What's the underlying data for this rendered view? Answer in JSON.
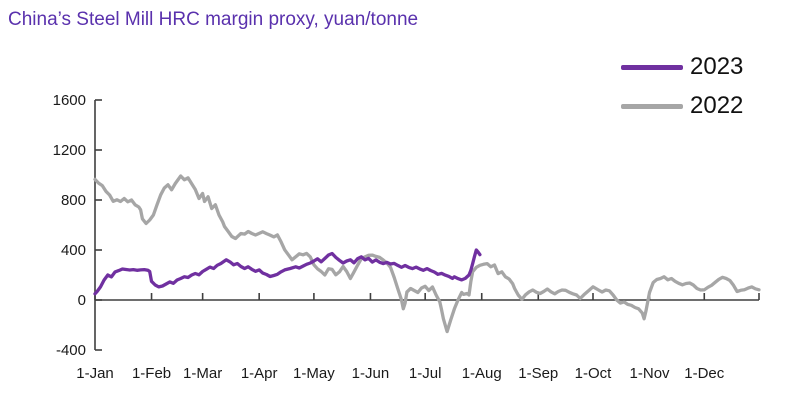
{
  "title": {
    "text": "China’s Steel Mill HRC margin proxy, yuan/tonne",
    "color": "#5a31ad"
  },
  "legend": {
    "items": [
      {
        "label": "2023",
        "color": "#7030A0"
      },
      {
        "label": "2022",
        "color": "#A6A6A6"
      }
    ]
  },
  "axis_style": {
    "line_color": "#3f3f3f",
    "tick_label_color": "#1a1a1a"
  },
  "chart_data": {
    "type": "line",
    "title": "China’s Steel Mill HRC margin proxy, yuan/tonne",
    "ylabel": "yuan/tonne",
    "ylim": [
      -400,
      1600
    ],
    "yticks": [
      1600,
      1200,
      800,
      400,
      0,
      -400
    ],
    "x_unit": "day-of-year",
    "xtick_labels": [
      "1-Jan",
      "1-Feb",
      "1-Mar",
      "1-Apr",
      "1-May",
      "1-Jun",
      "1-Jul",
      "1-Aug",
      "1-Sep",
      "1-Oct",
      "1-Nov",
      "1-Dec"
    ],
    "xtick_days": [
      1,
      32,
      60,
      91,
      121,
      152,
      182,
      213,
      244,
      274,
      305,
      335
    ],
    "x_axis_end_day": 365,
    "grid": false,
    "legend_position": "top-right",
    "series": [
      {
        "name": "2022",
        "color": "#A6A6A6",
        "points": [
          [
            1,
            965
          ],
          [
            3,
            935
          ],
          [
            5,
            915
          ],
          [
            7,
            870
          ],
          [
            9,
            840
          ],
          [
            11,
            790
          ],
          [
            13,
            802
          ],
          [
            15,
            788
          ],
          [
            17,
            812
          ],
          [
            19,
            786
          ],
          [
            21,
            800
          ],
          [
            23,
            762
          ],
          [
            25,
            744
          ],
          [
            26,
            722
          ],
          [
            27,
            650
          ],
          [
            29,
            612
          ],
          [
            31,
            640
          ],
          [
            33,
            680
          ],
          [
            35,
            762
          ],
          [
            37,
            842
          ],
          [
            39,
            896
          ],
          [
            41,
            922
          ],
          [
            43,
            882
          ],
          [
            45,
            932
          ],
          [
            47,
            972
          ],
          [
            48,
            992
          ],
          [
            50,
            962
          ],
          [
            52,
            978
          ],
          [
            54,
            930
          ],
          [
            56,
            884
          ],
          [
            58,
            812
          ],
          [
            60,
            852
          ],
          [
            61,
            788
          ],
          [
            63,
            826
          ],
          [
            65,
            732
          ],
          [
            67,
            762
          ],
          [
            69,
            680
          ],
          [
            71,
            625
          ],
          [
            72,
            588
          ],
          [
            74,
            548
          ],
          [
            76,
            508
          ],
          [
            78,
            492
          ],
          [
            79,
            506
          ],
          [
            81,
            532
          ],
          [
            83,
            527
          ],
          [
            85,
            548
          ],
          [
            87,
            532
          ],
          [
            89,
            520
          ],
          [
            91,
            533
          ],
          [
            93,
            546
          ],
          [
            95,
            531
          ],
          [
            97,
            519
          ],
          [
            99,
            505
          ],
          [
            101,
            521
          ],
          [
            103,
            465
          ],
          [
            105,
            402
          ],
          [
            107,
            362
          ],
          [
            109,
            322
          ],
          [
            111,
            346
          ],
          [
            113,
            370
          ],
          [
            115,
            362
          ],
          [
            117,
            373
          ],
          [
            119,
            345
          ],
          [
            121,
            282
          ],
          [
            123,
            250
          ],
          [
            125,
            228
          ],
          [
            127,
            200
          ],
          [
            129,
            250
          ],
          [
            131,
            245
          ],
          [
            133,
            202
          ],
          [
            135,
            225
          ],
          [
            137,
            268
          ],
          [
            139,
            228
          ],
          [
            141,
            172
          ],
          [
            143,
            225
          ],
          [
            145,
            280
          ],
          [
            147,
            330
          ],
          [
            149,
            345
          ],
          [
            151,
            358
          ],
          [
            153,
            359
          ],
          [
            155,
            349
          ],
          [
            157,
            341
          ],
          [
            159,
            320
          ],
          [
            161,
            296
          ],
          [
            163,
            262
          ],
          [
            165,
            180
          ],
          [
            167,
            90
          ],
          [
            169,
            0
          ],
          [
            170,
            -70
          ],
          [
            171,
            -25
          ],
          [
            172,
            64
          ],
          [
            174,
            92
          ],
          [
            176,
            76
          ],
          [
            178,
            60
          ],
          [
            180,
            96
          ],
          [
            182,
            110
          ],
          [
            184,
            76
          ],
          [
            186,
            104
          ],
          [
            188,
            40
          ],
          [
            190,
            -15
          ],
          [
            191,
            -80
          ],
          [
            192,
            -150
          ],
          [
            194,
            -253
          ],
          [
            196,
            -160
          ],
          [
            198,
            -70
          ],
          [
            200,
            0
          ],
          [
            202,
            60
          ],
          [
            203,
            45
          ],
          [
            205,
            52
          ],
          [
            206,
            40
          ],
          [
            207,
            146
          ],
          [
            208,
            225
          ],
          [
            210,
            262
          ],
          [
            212,
            278
          ],
          [
            214,
            286
          ],
          [
            216,
            291
          ],
          [
            218,
            266
          ],
          [
            220,
            280
          ],
          [
            222,
            211
          ],
          [
            224,
            226
          ],
          [
            226,
            186
          ],
          [
            228,
            168
          ],
          [
            230,
            130
          ],
          [
            231,
            92
          ],
          [
            233,
            40
          ],
          [
            235,
            6
          ],
          [
            237,
            42
          ],
          [
            239,
            66
          ],
          [
            241,
            80
          ],
          [
            243,
            62
          ],
          [
            245,
            52
          ],
          [
            247,
            68
          ],
          [
            249,
            88
          ],
          [
            251,
            66
          ],
          [
            253,
            50
          ],
          [
            255,
            68
          ],
          [
            257,
            80
          ],
          [
            259,
            78
          ],
          [
            261,
            62
          ],
          [
            263,
            50
          ],
          [
            265,
            40
          ],
          [
            267,
            12
          ],
          [
            269,
            42
          ],
          [
            272,
            80
          ],
          [
            274,
            106
          ],
          [
            277,
            80
          ],
          [
            279,
            64
          ],
          [
            281,
            80
          ],
          [
            283,
            74
          ],
          [
            285,
            40
          ],
          [
            287,
            0
          ],
          [
            289,
            -25
          ],
          [
            291,
            -15
          ],
          [
            293,
            -35
          ],
          [
            295,
            -42
          ],
          [
            297,
            -60
          ],
          [
            299,
            -70
          ],
          [
            301,
            -105
          ],
          [
            302,
            -150
          ],
          [
            303,
            -90
          ],
          [
            305,
            60
          ],
          [
            307,
            140
          ],
          [
            309,
            164
          ],
          [
            311,
            172
          ],
          [
            313,
            186
          ],
          [
            315,
            162
          ],
          [
            317,
            172
          ],
          [
            319,
            150
          ],
          [
            321,
            134
          ],
          [
            323,
            122
          ],
          [
            325,
            132
          ],
          [
            327,
            136
          ],
          [
            329,
            120
          ],
          [
            331,
            92
          ],
          [
            333,
            80
          ],
          [
            335,
            82
          ],
          [
            337,
            102
          ],
          [
            339,
            118
          ],
          [
            341,
            142
          ],
          [
            343,
            166
          ],
          [
            345,
            182
          ],
          [
            347,
            172
          ],
          [
            349,
            157
          ],
          [
            351,
            118
          ],
          [
            353,
            68
          ],
          [
            355,
            78
          ],
          [
            357,
            82
          ],
          [
            359,
            95
          ],
          [
            361,
            105
          ],
          [
            363,
            90
          ],
          [
            365,
            82
          ]
        ]
      },
      {
        "name": "2023",
        "color": "#7030A0",
        "points": [
          [
            1,
            50
          ],
          [
            2,
            65
          ],
          [
            4,
            105
          ],
          [
            6,
            160
          ],
          [
            8,
            200
          ],
          [
            10,
            185
          ],
          [
            12,
            225
          ],
          [
            14,
            235
          ],
          [
            16,
            248
          ],
          [
            18,
            244
          ],
          [
            20,
            240
          ],
          [
            22,
            243
          ],
          [
            24,
            238
          ],
          [
            26,
            241
          ],
          [
            28,
            243
          ],
          [
            30,
            238
          ],
          [
            31,
            228
          ],
          [
            32,
            150
          ],
          [
            34,
            120
          ],
          [
            36,
            105
          ],
          [
            38,
            112
          ],
          [
            40,
            128
          ],
          [
            42,
            145
          ],
          [
            44,
            134
          ],
          [
            46,
            160
          ],
          [
            48,
            172
          ],
          [
            50,
            186
          ],
          [
            52,
            180
          ],
          [
            54,
            200
          ],
          [
            56,
            212
          ],
          [
            58,
            202
          ],
          [
            60,
            228
          ],
          [
            62,
            246
          ],
          [
            64,
            263
          ],
          [
            66,
            252
          ],
          [
            68,
            278
          ],
          [
            70,
            292
          ],
          [
            72,
            312
          ],
          [
            73,
            322
          ],
          [
            75,
            305
          ],
          [
            77,
            282
          ],
          [
            79,
            292
          ],
          [
            81,
            268
          ],
          [
            83,
            252
          ],
          [
            85,
            266
          ],
          [
            87,
            245
          ],
          [
            89,
            230
          ],
          [
            91,
            241
          ],
          [
            93,
            215
          ],
          [
            95,
            204
          ],
          [
            97,
            188
          ],
          [
            99,
            196
          ],
          [
            101,
            206
          ],
          [
            103,
            226
          ],
          [
            105,
            241
          ],
          [
            108,
            252
          ],
          [
            111,
            266
          ],
          [
            113,
            256
          ],
          [
            115,
            271
          ],
          [
            117,
            286
          ],
          [
            119,
            296
          ],
          [
            121,
            312
          ],
          [
            123,
            330
          ],
          [
            125,
            306
          ],
          [
            127,
            332
          ],
          [
            129,
            360
          ],
          [
            131,
            372
          ],
          [
            133,
            341
          ],
          [
            135,
            318
          ],
          [
            137,
            296
          ],
          [
            139,
            312
          ],
          [
            141,
            322
          ],
          [
            143,
            298
          ],
          [
            145,
            331
          ],
          [
            147,
            346
          ],
          [
            149,
            321
          ],
          [
            151,
            333
          ],
          [
            153,
            303
          ],
          [
            155,
            321
          ],
          [
            157,
            302
          ],
          [
            159,
            291
          ],
          [
            161,
            301
          ],
          [
            163,
            288
          ],
          [
            165,
            293
          ],
          [
            167,
            277
          ],
          [
            169,
            262
          ],
          [
            171,
            276
          ],
          [
            173,
            261
          ],
          [
            175,
            251
          ],
          [
            177,
            263
          ],
          [
            179,
            249
          ],
          [
            181,
            238
          ],
          [
            183,
            251
          ],
          [
            185,
            236
          ],
          [
            187,
            224
          ],
          [
            189,
            206
          ],
          [
            191,
            213
          ],
          [
            193,
            199
          ],
          [
            195,
            189
          ],
          [
            197,
            173
          ],
          [
            198,
            186
          ],
          [
            200,
            171
          ],
          [
            202,
            161
          ],
          [
            204,
            173
          ],
          [
            206,
            200
          ],
          [
            207,
            236
          ],
          [
            208,
            290
          ],
          [
            209,
            346
          ],
          [
            210,
            400
          ],
          [
            211,
            383
          ],
          [
            212,
            363
          ]
        ]
      }
    ]
  }
}
